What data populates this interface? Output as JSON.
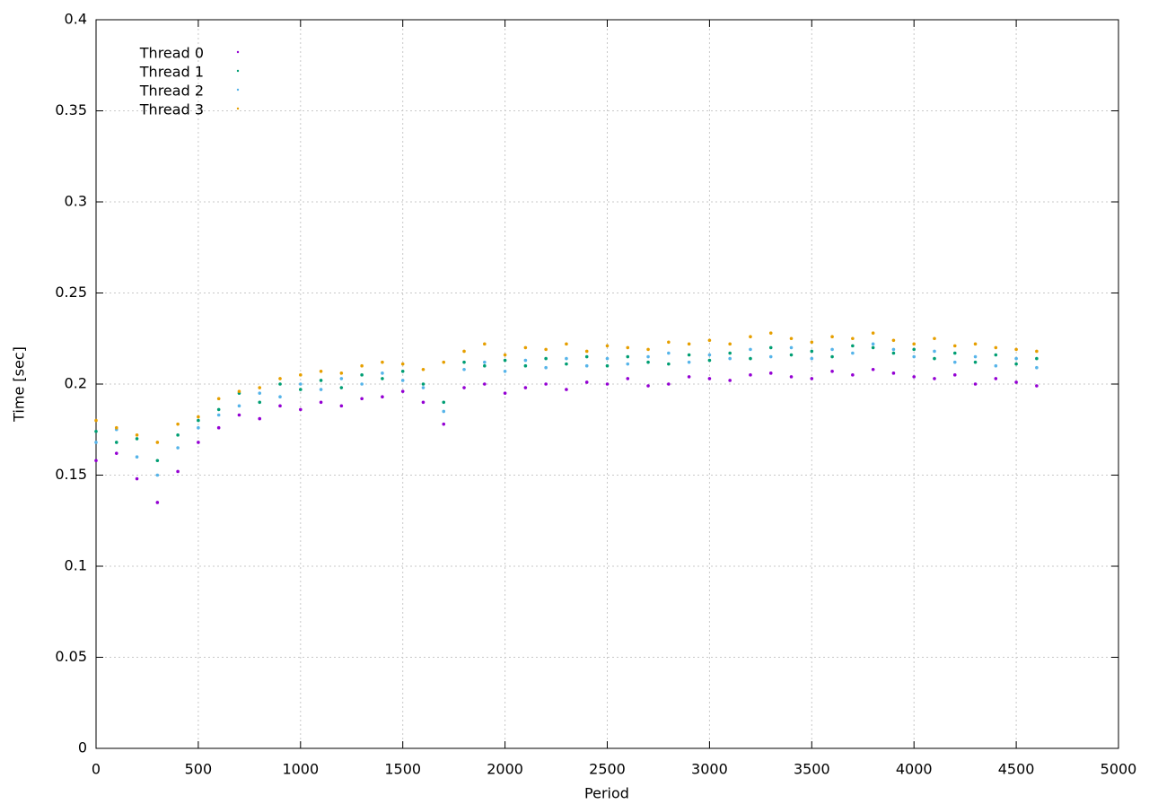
{
  "chart_data": {
    "type": "scatter",
    "xlabel": "Period",
    "ylabel": "Time [sec]",
    "xlim": [
      0,
      5000
    ],
    "xticks": [
      0,
      500,
      1000,
      1500,
      2000,
      2500,
      3000,
      3500,
      4000,
      4500,
      5000
    ],
    "ylim": [
      0,
      0.4
    ],
    "yticks": [
      0,
      0.05,
      0.1,
      0.15,
      0.2,
      0.25,
      0.3,
      0.35,
      0.4
    ],
    "grid": true,
    "legend": "top-left",
    "x": [
      0,
      100,
      200,
      300,
      400,
      500,
      600,
      700,
      800,
      900,
      1000,
      1100,
      1200,
      1300,
      1400,
      1500,
      1600,
      1700,
      1800,
      1900,
      2000,
      2100,
      2200,
      2300,
      2400,
      2500,
      2600,
      2700,
      2800,
      2900,
      3000,
      3100,
      3200,
      3300,
      3400,
      3500,
      3600,
      3700,
      3800,
      3900,
      4000,
      4100,
      4200,
      4300,
      4400,
      4500,
      4600
    ],
    "series": [
      {
        "name": "Thread 0",
        "color": "#9400d3",
        "values": [
          0.158,
          0.162,
          0.148,
          0.135,
          0.152,
          0.168,
          0.176,
          0.183,
          0.181,
          0.188,
          0.186,
          0.19,
          0.188,
          0.192,
          0.193,
          0.196,
          0.19,
          0.178,
          0.198,
          0.2,
          0.195,
          0.198,
          0.2,
          0.197,
          0.201,
          0.2,
          0.203,
          0.199,
          0.2,
          0.204,
          0.203,
          0.202,
          0.205,
          0.206,
          0.204,
          0.203,
          0.207,
          0.205,
          0.208,
          0.206,
          0.204,
          0.203,
          0.205,
          0.2,
          0.203,
          0.201,
          0.199
        ]
      },
      {
        "name": "Thread 1",
        "color": "#009e73",
        "values": [
          0.174,
          0.168,
          0.17,
          0.158,
          0.172,
          0.18,
          0.186,
          0.195,
          0.19,
          0.2,
          0.197,
          0.202,
          0.198,
          0.205,
          0.203,
          0.207,
          0.2,
          0.19,
          0.212,
          0.21,
          0.213,
          0.21,
          0.214,
          0.211,
          0.215,
          0.21,
          0.215,
          0.212,
          0.211,
          0.216,
          0.213,
          0.217,
          0.214,
          0.22,
          0.216,
          0.218,
          0.215,
          0.221,
          0.22,
          0.217,
          0.219,
          0.214,
          0.217,
          0.212,
          0.216,
          0.211,
          0.214
        ]
      },
      {
        "name": "Thread 2",
        "color": "#56b4e9",
        "values": [
          0.168,
          0.175,
          0.16,
          0.15,
          0.165,
          0.176,
          0.183,
          0.188,
          0.195,
          0.193,
          0.2,
          0.197,
          0.203,
          0.2,
          0.206,
          0.202,
          0.198,
          0.185,
          0.208,
          0.212,
          0.207,
          0.213,
          0.209,
          0.214,
          0.21,
          0.214,
          0.211,
          0.215,
          0.217,
          0.212,
          0.216,
          0.214,
          0.219,
          0.215,
          0.22,
          0.214,
          0.219,
          0.217,
          0.222,
          0.219,
          0.215,
          0.218,
          0.212,
          0.215,
          0.21,
          0.214,
          0.209
        ]
      },
      {
        "name": "Thread 3",
        "color": "#e69f00",
        "values": [
          0.18,
          0.176,
          0.172,
          0.168,
          0.178,
          0.182,
          0.192,
          0.196,
          0.198,
          0.203,
          0.205,
          0.207,
          0.206,
          0.21,
          0.212,
          0.211,
          0.208,
          0.212,
          0.218,
          0.222,
          0.216,
          0.22,
          0.219,
          0.222,
          0.218,
          0.221,
          0.22,
          0.219,
          0.223,
          0.222,
          0.224,
          0.222,
          0.226,
          0.228,
          0.225,
          0.223,
          0.226,
          0.225,
          0.228,
          0.224,
          0.222,
          0.225,
          0.221,
          0.222,
          0.22,
          0.219,
          0.218
        ]
      }
    ]
  }
}
